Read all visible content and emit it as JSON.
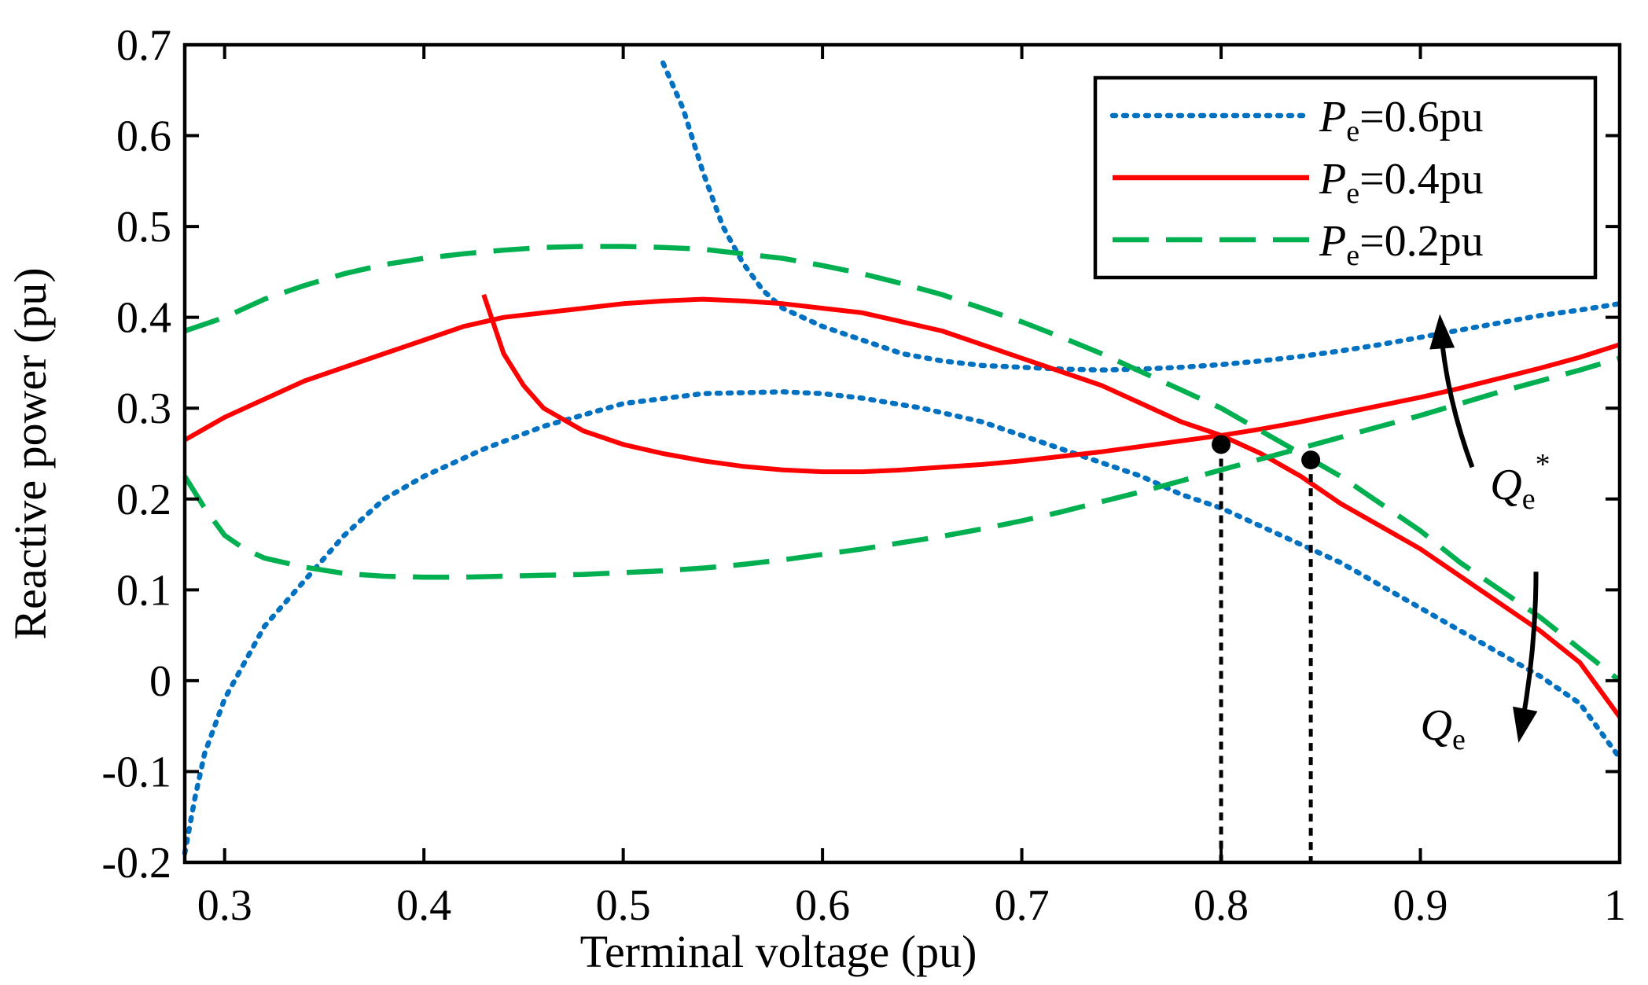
{
  "chart_data": {
    "type": "line",
    "xlabel": "Terminal voltage (pu)",
    "ylabel": "Reactive power (pu)",
    "xlim": [
      0.28,
      1.0
    ],
    "ylim": [
      -0.2,
      0.7
    ],
    "xticks": [
      0.3,
      0.4,
      0.5,
      0.6,
      0.7,
      0.8,
      0.9,
      1.0
    ],
    "xtick_labels": [
      "0.3",
      "0.4",
      "0.5",
      "0.6",
      "0.7",
      "0.8",
      "0.9",
      "1"
    ],
    "yticks": [
      -0.2,
      -0.1,
      0,
      0.1,
      0.2,
      0.3,
      0.4,
      0.5,
      0.6,
      0.7
    ],
    "ytick_labels": [
      "-0.2",
      "-0.1",
      "0",
      "0.1",
      "0.2",
      "0.3",
      "0.4",
      "0.5",
      "0.6",
      "0.7"
    ],
    "legend_position": "top-right",
    "grid": false,
    "series": [
      {
        "name_prefix": "P",
        "name_sub": "e",
        "name_suffix": "=0.6pu",
        "color": "#0070C0",
        "style": "dotted",
        "branches": [
          {
            "x": [
              0.52,
              0.53,
              0.54,
              0.55,
              0.56,
              0.57,
              0.58,
              0.6,
              0.62,
              0.64,
              0.66,
              0.68,
              0.7,
              0.72,
              0.74,
              0.76,
              0.78,
              0.8,
              0.82,
              0.84,
              0.86,
              0.88,
              0.9,
              0.92,
              0.94,
              0.96,
              0.98,
              1.0
            ],
            "y": [
              0.68,
              0.63,
              0.56,
              0.5,
              0.46,
              0.43,
              0.41,
              0.39,
              0.375,
              0.36,
              0.352,
              0.347,
              0.345,
              0.343,
              0.342,
              0.343,
              0.345,
              0.348,
              0.352,
              0.357,
              0.363,
              0.37,
              0.378,
              0.386,
              0.394,
              0.402,
              0.408,
              0.415
            ]
          },
          {
            "x": [
              0.28,
              0.285,
              0.29,
              0.3,
              0.31,
              0.32,
              0.34,
              0.36,
              0.38,
              0.4,
              0.43,
              0.46,
              0.5,
              0.54,
              0.58,
              0.6,
              0.62,
              0.65,
              0.68,
              0.7,
              0.72,
              0.74,
              0.76,
              0.78,
              0.8,
              0.82,
              0.84,
              0.86,
              0.88,
              0.9,
              0.92,
              0.94,
              0.96,
              0.98,
              1.0
            ],
            "y": [
              -0.19,
              -0.13,
              -0.08,
              -0.02,
              0.02,
              0.06,
              0.11,
              0.16,
              0.2,
              0.225,
              0.255,
              0.28,
              0.305,
              0.316,
              0.318,
              0.316,
              0.311,
              0.3,
              0.285,
              0.27,
              0.255,
              0.24,
              0.225,
              0.205,
              0.19,
              0.17,
              0.15,
              0.13,
              0.105,
              0.08,
              0.055,
              0.03,
              0.005,
              -0.025,
              -0.085
            ]
          }
        ]
      },
      {
        "name_prefix": "P",
        "name_sub": "e",
        "name_suffix": "=0.4pu",
        "color": "#FF0000",
        "style": "solid",
        "branches": [
          {
            "x": [
              0.28,
              0.3,
              0.32,
              0.34,
              0.36,
              0.38,
              0.4,
              0.42,
              0.44,
              0.46,
              0.48,
              0.5,
              0.52,
              0.54,
              0.56,
              0.58,
              0.6,
              0.62,
              0.64,
              0.66,
              0.68,
              0.7,
              0.72,
              0.74,
              0.76,
              0.78,
              0.8,
              0.82,
              0.84,
              0.86,
              0.88,
              0.9,
              0.92,
              0.94,
              0.96,
              0.98,
              1.0
            ],
            "y": [
              0.265,
              0.29,
              0.31,
              0.33,
              0.345,
              0.36,
              0.375,
              0.39,
              0.4,
              0.405,
              0.41,
              0.415,
              0.418,
              0.42,
              0.418,
              0.415,
              0.41,
              0.405,
              0.395,
              0.385,
              0.37,
              0.355,
              0.34,
              0.325,
              0.305,
              0.285,
              0.27,
              0.25,
              0.225,
              0.195,
              0.17,
              0.145,
              0.115,
              0.085,
              0.055,
              0.02,
              -0.04
            ]
          },
          {
            "x": [
              0.43,
              0.44,
              0.45,
              0.46,
              0.48,
              0.5,
              0.52,
              0.54,
              0.56,
              0.58,
              0.6,
              0.62,
              0.64,
              0.66,
              0.68,
              0.7,
              0.72,
              0.74,
              0.76,
              0.78,
              0.8,
              0.82,
              0.84,
              0.86,
              0.88,
              0.9,
              0.92,
              0.94,
              0.96,
              0.98,
              1.0
            ],
            "y": [
              0.425,
              0.36,
              0.325,
              0.3,
              0.275,
              0.26,
              0.25,
              0.242,
              0.236,
              0.232,
              0.23,
              0.23,
              0.232,
              0.235,
              0.238,
              0.242,
              0.247,
              0.252,
              0.258,
              0.264,
              0.27,
              0.277,
              0.285,
              0.294,
              0.303,
              0.312,
              0.322,
              0.333,
              0.344,
              0.356,
              0.37
            ]
          }
        ]
      },
      {
        "name_prefix": "P",
        "name_sub": "e",
        "name_suffix": "=0.2pu",
        "color": "#00B050",
        "style": "dashed",
        "branches": [
          {
            "x": [
              0.28,
              0.3,
              0.32,
              0.34,
              0.36,
              0.38,
              0.4,
              0.42,
              0.44,
              0.46,
              0.48,
              0.5,
              0.52,
              0.54,
              0.56,
              0.58,
              0.6,
              0.62,
              0.64,
              0.66,
              0.68,
              0.7,
              0.72,
              0.74,
              0.76,
              0.78,
              0.8,
              0.82,
              0.84,
              0.86,
              0.88,
              0.9,
              0.92,
              0.94,
              0.96,
              0.98,
              1.0
            ],
            "y": [
              0.385,
              0.4,
              0.42,
              0.435,
              0.448,
              0.458,
              0.465,
              0.47,
              0.474,
              0.477,
              0.478,
              0.478,
              0.477,
              0.475,
              0.47,
              0.465,
              0.457,
              0.448,
              0.437,
              0.425,
              0.41,
              0.395,
              0.378,
              0.36,
              0.34,
              0.32,
              0.3,
              0.275,
              0.25,
              0.225,
              0.195,
              0.165,
              0.13,
              0.1,
              0.07,
              0.035,
              0.0
            ]
          },
          {
            "x": [
              0.28,
              0.29,
              0.3,
              0.31,
              0.32,
              0.34,
              0.36,
              0.38,
              0.4,
              0.42,
              0.44,
              0.46,
              0.48,
              0.5,
              0.52,
              0.54,
              0.56,
              0.58,
              0.6,
              0.62,
              0.64,
              0.66,
              0.68,
              0.7,
              0.72,
              0.74,
              0.76,
              0.78,
              0.8,
              0.82,
              0.84,
              0.86,
              0.88,
              0.9,
              0.92,
              0.94,
              0.96,
              0.98,
              1.0
            ],
            "y": [
              0.225,
              0.19,
              0.16,
              0.145,
              0.135,
              0.125,
              0.118,
              0.115,
              0.114,
              0.114,
              0.115,
              0.116,
              0.117,
              0.119,
              0.121,
              0.124,
              0.128,
              0.133,
              0.139,
              0.145,
              0.152,
              0.159,
              0.167,
              0.176,
              0.186,
              0.197,
              0.208,
              0.22,
              0.232,
              0.244,
              0.256,
              0.268,
              0.28,
              0.292,
              0.305,
              0.318,
              0.33,
              0.342,
              0.355
            ]
          }
        ]
      }
    ],
    "markers": [
      {
        "x": 0.8,
        "y": 0.26
      },
      {
        "x": 0.845,
        "y": 0.243
      }
    ],
    "annotations": [
      {
        "main": "Q",
        "sub": "e",
        "sup": "*",
        "direction": "up",
        "label_at": [
          0.935,
          0.2
        ],
        "arrow_from": [
          0.926,
          0.235
        ],
        "arrow_to": [
          0.91,
          0.395
        ]
      },
      {
        "main": "Q",
        "sub": "e",
        "sup": "",
        "direction": "down",
        "label_at": [
          0.9,
          -0.065
        ],
        "arrow_from": [
          0.958,
          0.12
        ],
        "arrow_to": [
          0.95,
          -0.06
        ]
      }
    ]
  }
}
